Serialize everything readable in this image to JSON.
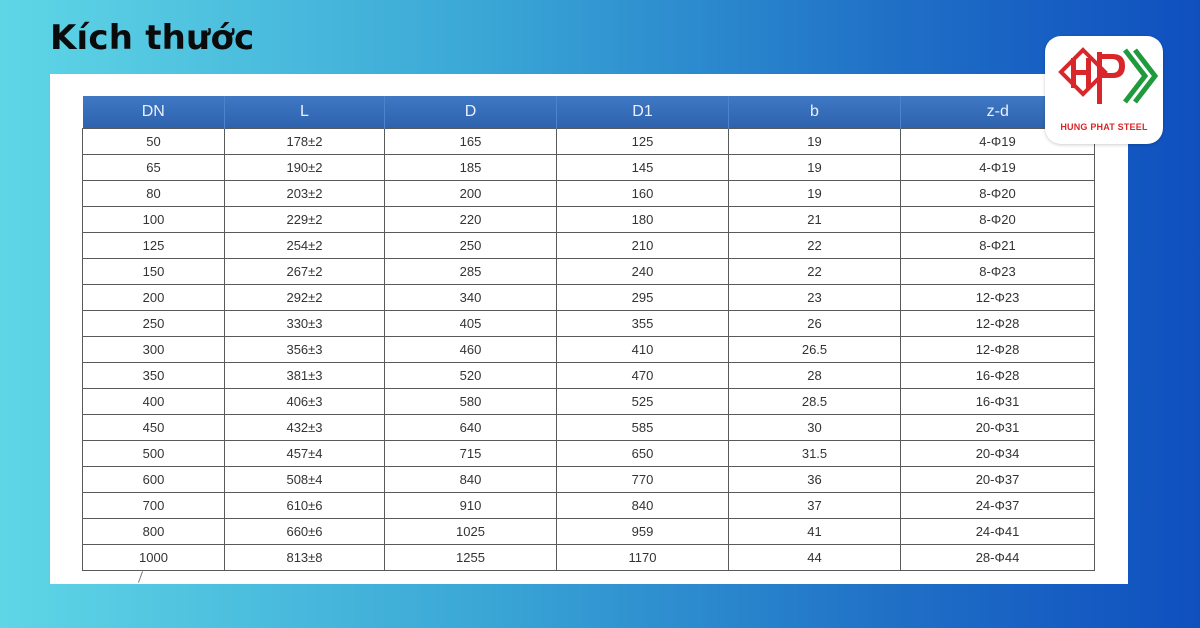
{
  "title": "Kích thước",
  "table": {
    "headers": [
      "DN",
      "L",
      "D",
      "D1",
      "b",
      "z-d"
    ],
    "rows": [
      [
        "50",
        "178±2",
        "165",
        "125",
        "19",
        "4-Φ19"
      ],
      [
        "65",
        "190±2",
        "185",
        "145",
        "19",
        "4-Φ19"
      ],
      [
        "80",
        "203±2",
        "200",
        "160",
        "19",
        "8-Φ20"
      ],
      [
        "100",
        "229±2",
        "220",
        "180",
        "21",
        "8-Φ20"
      ],
      [
        "125",
        "254±2",
        "250",
        "210",
        "22",
        "8-Φ21"
      ],
      [
        "150",
        "267±2",
        "285",
        "240",
        "22",
        "8-Φ23"
      ],
      [
        "200",
        "292±2",
        "340",
        "295",
        "23",
        "12-Φ23"
      ],
      [
        "250",
        "330±3",
        "405",
        "355",
        "26",
        "12-Φ28"
      ],
      [
        "300",
        "356±3",
        "460",
        "410",
        "26.5",
        "12-Φ28"
      ],
      [
        "350",
        "381±3",
        "520",
        "470",
        "28",
        "16-Φ28"
      ],
      [
        "400",
        "406±3",
        "580",
        "525",
        "28.5",
        "16-Φ31"
      ],
      [
        "450",
        "432±3",
        "640",
        "585",
        "30",
        "20-Φ31"
      ],
      [
        "500",
        "457±4",
        "715",
        "650",
        "31.5",
        "20-Φ34"
      ],
      [
        "600",
        "508±4",
        "840",
        "770",
        "36",
        "20-Φ37"
      ],
      [
        "700",
        "610±6",
        "910",
        "840",
        "37",
        "24-Φ37"
      ],
      [
        "800",
        "660±6",
        "1025",
        "959",
        "41",
        "24-Φ41"
      ],
      [
        "1000",
        "813±8",
        "1255",
        "1170",
        "44",
        "28-Φ44"
      ]
    ]
  },
  "logo": {
    "text": "HUNG PHAT STEEL",
    "icon": "hp-steel-logo-icon",
    "colors": {
      "red": "#d9262a",
      "green": "#1f9a3c"
    }
  },
  "colors": {
    "header_bg": "#3469b5",
    "header_text": "#e9f0fb",
    "border": "#5a5a5a"
  }
}
